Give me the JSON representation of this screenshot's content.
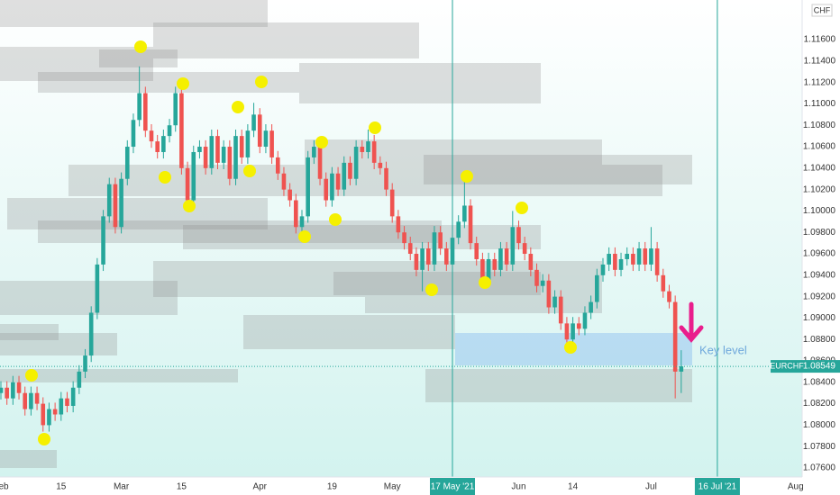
{
  "chart_data": {
    "type": "candlestick",
    "symbol": "EURCHF",
    "currency": "CHF",
    "annotation": "Key level",
    "last_price": 1.08549,
    "up_color": "#26a69a",
    "down_color": "#ef5350",
    "categories": [
      "Feb",
      null,
      null,
      null,
      null,
      null,
      null,
      null,
      null,
      null,
      "15",
      null,
      null,
      null,
      null,
      null,
      null,
      null,
      null,
      null,
      "Mar",
      null,
      null,
      null,
      null,
      null,
      null,
      null,
      null,
      null,
      "15",
      null,
      null,
      null,
      null,
      null,
      null,
      null,
      null,
      null,
      null,
      null,
      null,
      "Apr",
      null,
      null,
      null,
      null,
      null,
      null,
      null,
      null,
      null,
      null,
      null,
      "19",
      null,
      null,
      null,
      null,
      null,
      null,
      null,
      null,
      null,
      "May",
      null,
      null,
      null,
      null,
      null,
      null,
      null,
      null,
      null,
      "17 May '21",
      null,
      null,
      null,
      null,
      null,
      null,
      null,
      null,
      null,
      null,
      "Jun",
      null,
      null,
      null,
      null,
      null,
      null,
      null,
      null,
      "14",
      null,
      null,
      null,
      null,
      null,
      null,
      null,
      null,
      null,
      null,
      null,
      null,
      "Jul",
      null,
      null,
      null,
      null,
      null,
      null,
      null,
      null,
      null,
      null,
      "16 Jul '21",
      null,
      null,
      null,
      null,
      null,
      null,
      null,
      null,
      null,
      null,
      null,
      null,
      "Aug",
      null,
      null,
      null,
      null,
      null,
      null
    ],
    "open": [
      1.083,
      1.0835,
      1.0825,
      1.084,
      1.083,
      1.0815,
      1.083,
      1.082,
      1.08,
      1.0815,
      1.081,
      1.0825,
      1.0818,
      1.0835,
      1.085,
      1.0865,
      1.0905,
      1.095,
      1.0995,
      1.1025,
      1.0985,
      1.103,
      1.106,
      1.1085,
      1.111,
      1.1075,
      1.1065,
      1.1055,
      1.107,
      1.108,
      1.111,
      1.104,
      1.101,
      1.1055,
      1.106,
      1.104,
      1.107,
      1.1045,
      1.106,
      1.103,
      1.107,
      1.105,
      1.1075,
      1.109,
      1.106,
      1.1075,
      1.105,
      1.1035,
      1.102,
      1.101,
      1.0985,
      1.0995,
      1.105,
      1.106,
      1.103,
      1.101,
      1.1035,
      1.102,
      1.1045,
      1.103,
      1.106,
      1.1055,
      1.1065,
      1.1045,
      1.104,
      1.102,
      1.0995,
      1.098,
      1.097,
      1.096,
      1.0945,
      1.0965,
      1.095,
      1.098,
      1.0965,
      1.095,
      1.0975,
      1.099,
      1.1005,
      1.097,
      1.0955,
      1.0935,
      1.0955,
      1.0945,
      1.0965,
      1.095,
      1.0985,
      1.097,
      1.096,
      1.0945,
      1.093,
      1.0935,
      1.091,
      1.092,
      1.0895,
      1.088,
      1.0895,
      1.089,
      1.0905,
      1.0915,
      1.094,
      1.095,
      1.096,
      1.0945,
      1.0955,
      1.096,
      1.095,
      1.0965,
      1.095,
      1.0965,
      1.094,
      1.0925,
      1.0915,
      1.085,
      null,
      null,
      null,
      null,
      null,
      null,
      null,
      null,
      null,
      null,
      null,
      null,
      null,
      null,
      null,
      null,
      null,
      null,
      null,
      null,
      null,
      null,
      null,
      null,
      null
    ],
    "high": [
      1.0841,
      1.0841,
      1.0846,
      1.0846,
      1.0836,
      1.0836,
      1.0836,
      1.0826,
      1.0821,
      1.0821,
      1.0831,
      1.0831,
      1.0841,
      1.0856,
      1.0871,
      1.0911,
      1.0956,
      1.1001,
      1.1031,
      1.1031,
      1.1036,
      1.1066,
      1.1091,
      1.1135,
      1.1116,
      1.1081,
      1.1071,
      1.1076,
      1.1086,
      1.1116,
      1.1116,
      1.1046,
      1.1061,
      1.1066,
      1.1066,
      1.1076,
      1.1076,
      1.1066,
      1.1066,
      1.1076,
      1.1076,
      1.1081,
      1.1101,
      1.1096,
      1.1081,
      1.1081,
      1.1056,
      1.1041,
      1.1026,
      1.1016,
      1.1001,
      1.1056,
      1.1066,
      1.1066,
      1.1036,
      1.1041,
      1.1041,
      1.1051,
      1.1051,
      1.1066,
      1.1066,
      1.1076,
      1.1071,
      1.1051,
      1.1046,
      1.1026,
      1.1001,
      1.0986,
      1.0976,
      1.0966,
      1.0971,
      1.0971,
      1.0986,
      1.0986,
      1.0971,
      1.0981,
      1.0996,
      1.103,
      1.1011,
      1.0976,
      1.0961,
      1.0961,
      1.0961,
      1.0971,
      1.0971,
      1.1,
      1.0991,
      1.0976,
      1.0966,
      1.0951,
      1.0941,
      1.0941,
      1.0926,
      1.0926,
      1.0901,
      1.0901,
      1.0901,
      1.0911,
      1.0921,
      1.0946,
      1.0956,
      1.0966,
      1.0966,
      1.0961,
      1.0966,
      1.0966,
      1.0971,
      1.0971,
      1.0985,
      1.0971,
      1.0946,
      1.0931,
      1.0921,
      1.087,
      null,
      null,
      null,
      null,
      null,
      null,
      null,
      null,
      null,
      null,
      null,
      null,
      null,
      null,
      null,
      null,
      null,
      null,
      null,
      null,
      null,
      null,
      null,
      null,
      null
    ],
    "low": [
      1.0824,
      1.0819,
      1.0819,
      1.0824,
      1.0809,
      1.0809,
      1.0814,
      1.0794,
      1.0794,
      1.0804,
      1.0804,
      1.0812,
      1.0812,
      1.0829,
      1.0844,
      1.0859,
      1.0899,
      1.0944,
      1.0989,
      1.0979,
      1.0979,
      1.1024,
      1.1054,
      1.1079,
      1.1069,
      1.1059,
      1.1049,
      1.1049,
      1.1064,
      1.1074,
      1.1034,
      1.1004,
      1.1004,
      1.1049,
      1.1034,
      1.1034,
      1.1039,
      1.1039,
      1.1024,
      1.1024,
      1.1044,
      1.1044,
      1.1069,
      1.1054,
      1.1054,
      1.1044,
      1.1029,
      1.1014,
      1.1004,
      1.0979,
      1.0979,
      1.0989,
      1.1044,
      1.1024,
      1.1004,
      1.1004,
      1.1014,
      1.1014,
      1.1024,
      1.1024,
      1.1049,
      1.1049,
      1.1039,
      1.1034,
      1.1014,
      1.0989,
      1.0974,
      1.0964,
      1.0954,
      1.0939,
      1.0925,
      1.0944,
      1.0944,
      1.0959,
      1.0944,
      1.0944,
      1.0969,
      1.0984,
      1.0964,
      1.0949,
      1.0929,
      1.0929,
      1.0939,
      1.0939,
      1.0944,
      1.0944,
      1.0964,
      1.0954,
      1.0939,
      1.0924,
      1.0924,
      1.0904,
      1.0904,
      1.0889,
      1.0874,
      1.0874,
      1.0884,
      1.0884,
      1.0899,
      1.0909,
      1.0934,
      1.0944,
      1.0939,
      1.0939,
      1.0949,
      1.0944,
      1.0944,
      1.0944,
      1.0944,
      1.0934,
      1.0919,
      1.0909,
      1.0825,
      1.083,
      null,
      null,
      null,
      null,
      null,
      null,
      null,
      null,
      null,
      null,
      null,
      null,
      null,
      null,
      null,
      null,
      null,
      null,
      null,
      null,
      null,
      null,
      null,
      null,
      null
    ],
    "close": [
      1.0835,
      1.0825,
      1.084,
      1.083,
      1.0815,
      1.083,
      1.082,
      1.08,
      1.0815,
      1.081,
      1.0825,
      1.0818,
      1.0835,
      1.085,
      1.0865,
      1.0905,
      1.095,
      1.0995,
      1.1025,
      1.0985,
      1.103,
      1.106,
      1.1085,
      1.111,
      1.1075,
      1.1065,
      1.1055,
      1.107,
      1.108,
      1.111,
      1.104,
      1.101,
      1.1055,
      1.106,
      1.104,
      1.107,
      1.1045,
      1.106,
      1.103,
      1.107,
      1.105,
      1.1075,
      1.109,
      1.106,
      1.1075,
      1.105,
      1.1035,
      1.102,
      1.101,
      1.0985,
      1.0995,
      1.105,
      1.106,
      1.103,
      1.101,
      1.1035,
      1.102,
      1.1045,
      1.103,
      1.106,
      1.1055,
      1.1065,
      1.1045,
      1.104,
      1.102,
      1.0995,
      1.098,
      1.097,
      1.096,
      1.0945,
      1.0965,
      1.095,
      1.098,
      1.0965,
      1.095,
      1.0975,
      1.099,
      1.1005,
      1.097,
      1.0955,
      1.0935,
      1.0955,
      1.0945,
      1.0965,
      1.095,
      1.0985,
      1.097,
      1.096,
      1.0945,
      1.093,
      1.0935,
      1.091,
      1.092,
      1.0895,
      1.088,
      1.0895,
      1.089,
      1.0905,
      1.0915,
      1.094,
      1.095,
      1.096,
      1.0945,
      1.0955,
      1.096,
      1.095,
      1.0965,
      1.095,
      1.0965,
      1.094,
      1.0925,
      1.0915,
      1.085,
      1.08549,
      null,
      null,
      null,
      null,
      null,
      null,
      null,
      null,
      null,
      null,
      null,
      null,
      null,
      null,
      null,
      null,
      null,
      null,
      null,
      null,
      null,
      null,
      null,
      null,
      null
    ],
    "ylim": [
      1.07516,
      1.1197
    ],
    "yticks": [
      {
        "value": 1.076,
        "label": "1.07600"
      },
      {
        "value": 1.078,
        "label": "1.07800"
      },
      {
        "value": 1.08,
        "label": "1.08000"
      },
      {
        "value": 1.082,
        "label": "1.08200"
      },
      {
        "value": 1.084,
        "label": "1.08400"
      },
      {
        "value": 1.086,
        "label": "1.08600"
      },
      {
        "value": 1.088,
        "label": "1.08800"
      },
      {
        "value": 1.09,
        "label": "1.09000"
      },
      {
        "value": 1.092,
        "label": "1.09200"
      },
      {
        "value": 1.094,
        "label": "1.09400"
      },
      {
        "value": 1.096,
        "label": "1.09600"
      },
      {
        "value": 1.098,
        "label": "1.09800"
      },
      {
        "value": 1.1,
        "label": "1.10000"
      },
      {
        "value": 1.102,
        "label": "1.10200"
      },
      {
        "value": 1.104,
        "label": "1.10400"
      },
      {
        "value": 1.106,
        "label": "1.10600"
      },
      {
        "value": 1.108,
        "label": "1.10800"
      },
      {
        "value": 1.11,
        "label": "1.11000"
      },
      {
        "value": 1.112,
        "label": "1.11200"
      },
      {
        "value": 1.114,
        "label": "1.11400"
      },
      {
        "value": 1.116,
        "label": "1.11600"
      }
    ]
  }
}
